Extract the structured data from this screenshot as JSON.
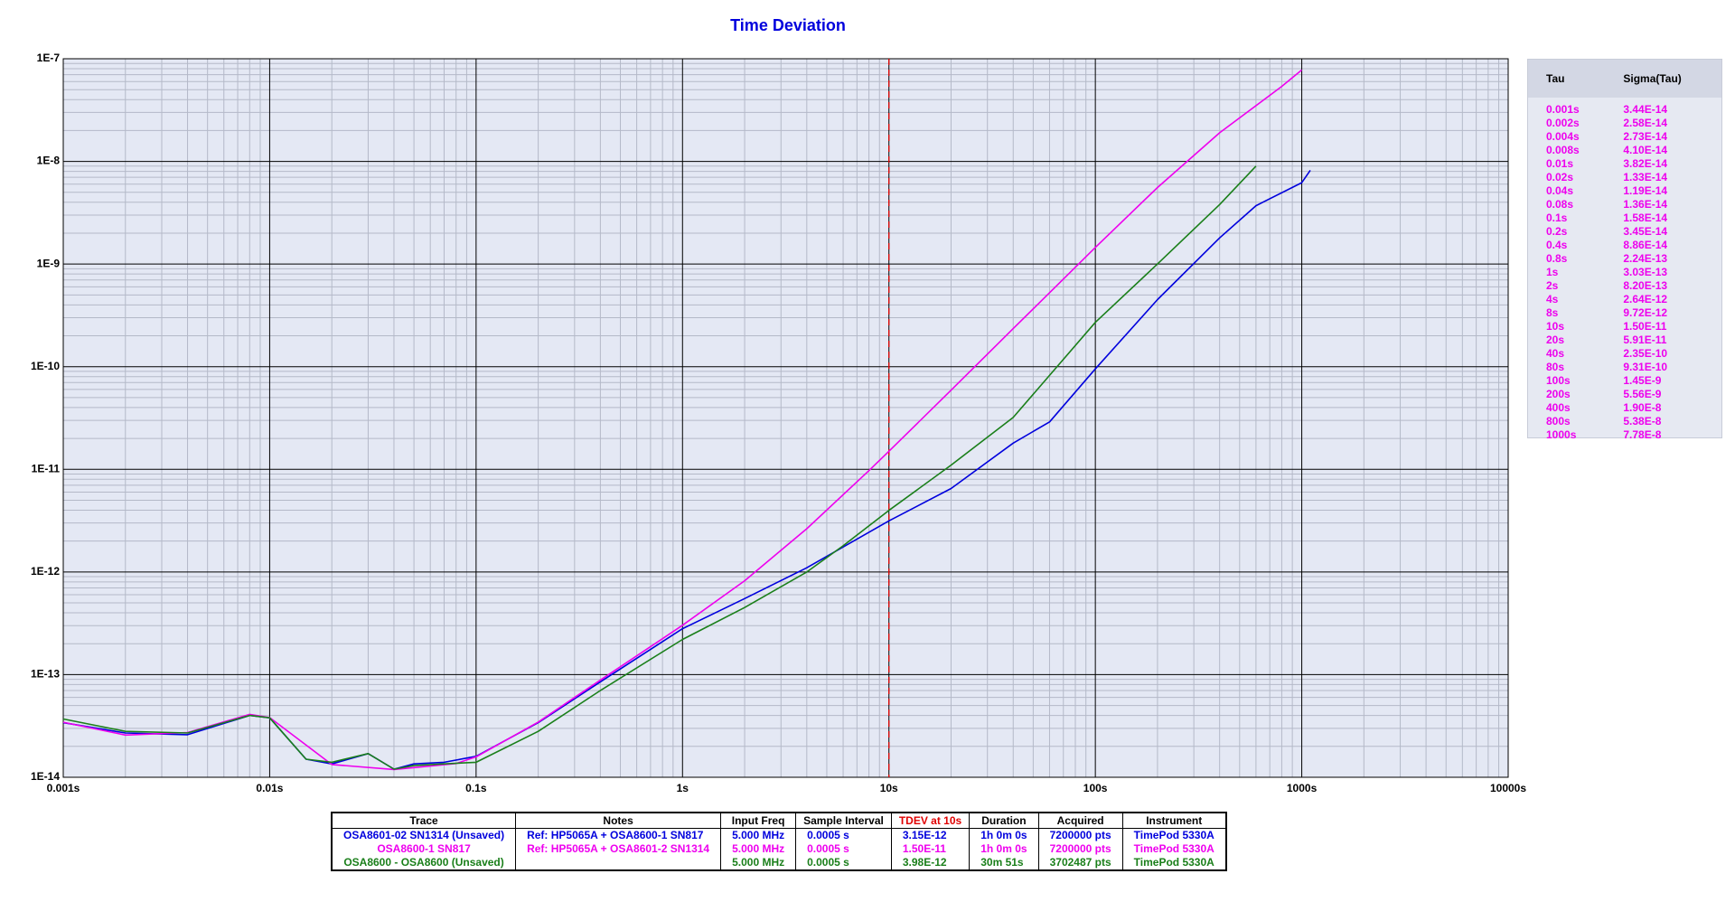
{
  "chart_data": {
    "type": "line",
    "title": "Time Deviation",
    "log_x": true,
    "log_y": true,
    "grid": true,
    "minor_grid": true,
    "xlim": [
      0.001,
      10000
    ],
    "ylim": [
      1e-14,
      1e-07
    ],
    "xticks": [
      {
        "value": 0.001,
        "label": "0.001s"
      },
      {
        "value": 0.01,
        "label": "0.01s"
      },
      {
        "value": 0.1,
        "label": "0.1s"
      },
      {
        "value": 1,
        "label": "1s"
      },
      {
        "value": 10,
        "label": "10s"
      },
      {
        "value": 100,
        "label": "100s"
      },
      {
        "value": 1000,
        "label": "1000s"
      },
      {
        "value": 10000,
        "label": "10000s"
      }
    ],
    "yticks": [
      {
        "value": 1e-14,
        "label": "1E-14"
      },
      {
        "value": 1e-13,
        "label": "1E-13"
      },
      {
        "value": 1e-12,
        "label": "1E-12"
      },
      {
        "value": 1e-11,
        "label": "1E-11"
      },
      {
        "value": 1e-10,
        "label": "1E-10"
      },
      {
        "value": 1e-09,
        "label": "1E-9"
      },
      {
        "value": 1e-08,
        "label": "1E-8"
      },
      {
        "value": 1e-07,
        "label": "1E-7"
      }
    ],
    "cursor": {
      "x": 10,
      "color": "#e00000"
    },
    "series": [
      {
        "name": "OSA8601-02 SN1314 (Unsaved)",
        "color": "#0000dd",
        "x": [
          0.001,
          0.002,
          0.004,
          0.008,
          0.01,
          0.015,
          0.02,
          0.03,
          0.04,
          0.05,
          0.07,
          0.1,
          0.2,
          0.4,
          1,
          2,
          4,
          10,
          20,
          40,
          60,
          100,
          200,
          400,
          600,
          1000,
          1100
        ],
        "values": [
          3.4e-14,
          2.7e-14,
          2.6e-14,
          4e-14,
          3.8e-14,
          1.5e-14,
          1.35e-14,
          1.7e-14,
          1.2e-14,
          1.35e-14,
          1.4e-14,
          1.6e-14,
          3.4e-14,
          8.5e-14,
          2.8e-13,
          5.5e-13,
          1.1e-12,
          3.15e-12,
          6.5e-12,
          1.8e-11,
          2.9e-11,
          9.5e-11,
          4.5e-10,
          1.8e-09,
          3.7e-09,
          6.2e-09,
          8.2e-09
        ]
      },
      {
        "name": "OSA8600-1 SN817",
        "color": "#ee00ee",
        "x": [
          0.001,
          0.002,
          0.004,
          0.008,
          0.01,
          0.02,
          0.04,
          0.08,
          0.1,
          0.2,
          0.4,
          0.8,
          1,
          2,
          4,
          8,
          10,
          20,
          40,
          80,
          100,
          200,
          400,
          800,
          1000
        ],
        "values": [
          3.44e-14,
          2.58e-14,
          2.73e-14,
          4.1e-14,
          3.82e-14,
          1.33e-14,
          1.19e-14,
          1.36e-14,
          1.58e-14,
          3.45e-14,
          8.86e-14,
          2.24e-13,
          3.03e-13,
          8.2e-13,
          2.64e-12,
          9.72e-12,
          1.5e-11,
          5.91e-11,
          2.35e-10,
          9.31e-10,
          1.45e-09,
          5.56e-09,
          1.9e-08,
          5.38e-08,
          7.78e-08
        ]
      },
      {
        "name": "OSA8600 - OSA8600 (Unsaved)",
        "color": "#1a7f1a",
        "x": [
          0.001,
          0.002,
          0.004,
          0.008,
          0.01,
          0.015,
          0.02,
          0.03,
          0.04,
          0.05,
          0.07,
          0.1,
          0.2,
          0.4,
          1,
          2,
          4,
          6,
          10,
          20,
          40,
          100,
          200,
          400,
          600
        ],
        "values": [
          3.7e-14,
          2.8e-14,
          2.7e-14,
          4e-14,
          3.8e-14,
          1.5e-14,
          1.4e-14,
          1.7e-14,
          1.2e-14,
          1.3e-14,
          1.35e-14,
          1.4e-14,
          2.8e-14,
          7e-14,
          2.2e-13,
          4.5e-13,
          1e-12,
          1.8e-12,
          3.98e-12,
          1.1e-11,
          3.2e-11,
          2.7e-10,
          1e-09,
          3.8e-09,
          9e-09
        ]
      }
    ]
  },
  "tau_table": {
    "columns": [
      "Tau",
      "Sigma(Tau)"
    ],
    "color": "#ee00ee",
    "rows": [
      [
        "0.001s",
        "3.44E-14"
      ],
      [
        "0.002s",
        "2.58E-14"
      ],
      [
        "0.004s",
        "2.73E-14"
      ],
      [
        "0.008s",
        "4.10E-14"
      ],
      [
        "0.01s",
        "3.82E-14"
      ],
      [
        "0.02s",
        "1.33E-14"
      ],
      [
        "0.04s",
        "1.19E-14"
      ],
      [
        "0.08s",
        "1.36E-14"
      ],
      [
        "0.1s",
        "1.58E-14"
      ],
      [
        "0.2s",
        "3.45E-14"
      ],
      [
        "0.4s",
        "8.86E-14"
      ],
      [
        "0.8s",
        "2.24E-13"
      ],
      [
        "1s",
        "3.03E-13"
      ],
      [
        "2s",
        "8.20E-13"
      ],
      [
        "4s",
        "2.64E-12"
      ],
      [
        "8s",
        "9.72E-12"
      ],
      [
        "10s",
        "1.50E-11"
      ],
      [
        "20s",
        "5.91E-11"
      ],
      [
        "40s",
        "2.35E-10"
      ],
      [
        "80s",
        "9.31E-10"
      ],
      [
        "100s",
        "1.45E-9"
      ],
      [
        "200s",
        "5.56E-9"
      ],
      [
        "400s",
        "1.90E-8"
      ],
      [
        "800s",
        "5.38E-8"
      ],
      [
        "1000s",
        "7.78E-8"
      ]
    ]
  },
  "trace_table": {
    "columns": [
      "Trace",
      "Notes",
      "Input Freq",
      "Sample Interval",
      "TDEV at 10s",
      "Duration",
      "Acquired",
      "Instrument"
    ],
    "rows": [
      {
        "color": "#0000dd",
        "cells": [
          "OSA8601-02 SN1314 (Unsaved)",
          "Ref: HP5065A + OSA8600-1 SN817",
          "5.000 MHz",
          "0.0005 s",
          "3.15E-12",
          "1h 0m 0s",
          "7200000 pts",
          "TimePod 5330A"
        ]
      },
      {
        "color": "#ee00ee",
        "cells": [
          "OSA8600-1 SN817",
          "Ref: HP5065A + OSA8601-2 SN1314",
          "5.000 MHz",
          "0.0005 s",
          "1.50E-11",
          "1h 0m 0s",
          "7200000 pts",
          "TimePod 5330A"
        ]
      },
      {
        "color": "#1a7f1a",
        "cells": [
          "OSA8600 - OSA8600 (Unsaved)",
          "",
          "5.000 MHz",
          "0.0005 s",
          "3.98E-12",
          "30m 51s",
          "3702487 pts",
          "TimePod 5330A"
        ]
      }
    ]
  }
}
